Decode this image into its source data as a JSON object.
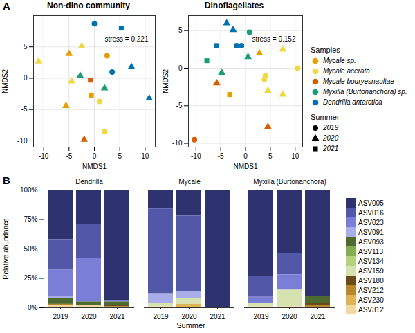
{
  "chart_data": [
    {
      "type": "scatter",
      "panel": "A",
      "title": "Non-dino community",
      "x_label": "NMDS1",
      "y_label": "NMDS2",
      "annotation": "stress = 0.221",
      "xlim": [
        -12,
        12
      ],
      "ylim": [
        -11,
        10
      ],
      "xticks": [
        -10,
        -5,
        0,
        5,
        10
      ],
      "yticks": [
        -10,
        -5,
        0,
        5
      ],
      "grid": true,
      "legend_title": "Samples",
      "marker_title": "Summer",
      "markers": [
        {
          "name": "2019",
          "marker": "circle"
        },
        {
          "name": "2020",
          "marker": "triangle"
        },
        {
          "name": "2021",
          "marker": "square"
        }
      ],
      "series": [
        {
          "name": "Mycale sp.",
          "color": "#E69F00",
          "x": [
            2.5,
            -5.0,
            -5.6,
            -0.6
          ],
          "y": [
            3.6,
            3.9,
            -4.4,
            -2.7
          ],
          "summer": [
            "2019",
            "2020",
            "2020",
            "2021"
          ]
        },
        {
          "name": "Mycale acerata",
          "color": "#F0D845",
          "x": [
            1.0,
            2.0,
            -11.0,
            -2.5,
            -4.5
          ],
          "y": [
            -3.7,
            -8.5,
            2.7,
            5.1,
            -0.5
          ],
          "summer": [
            "2019",
            "2019",
            "2020",
            "2020",
            "2020"
          ]
        },
        {
          "name": "Mycale bouryesnaultae",
          "color": "#D55E00",
          "x": [
            -2.0,
            -0.8
          ],
          "y": [
            -9.8,
            -0.3
          ],
          "summer": [
            "2020",
            "2021"
          ]
        },
        {
          "name": "Myxilla (Burtonanchora) sp.",
          "color": "#1B9E77",
          "x": [
            -2.8,
            2.0
          ],
          "y": [
            0.4,
            -1.6
          ],
          "summer": [
            "2020",
            "2020"
          ]
        },
        {
          "name": "Dendrilla antarctica",
          "color": "#0072B2",
          "x": [
            0.0,
            3.5,
            7.3,
            10.8,
            5.3
          ],
          "y": [
            8.7,
            1.0,
            1.8,
            -3.2,
            8.0
          ],
          "summer": [
            "2019",
            "2019",
            "2020",
            "2020",
            "2021"
          ]
        }
      ]
    },
    {
      "type": "scatter",
      "title": "Dinoflagellates",
      "x_label": "NMDS1",
      "y_label": "NMDS2",
      "annotation": "stress = 0.152",
      "xlim": [
        -11.5,
        11.5
      ],
      "ylim": [
        -10.5,
        7
      ],
      "xticks": [
        -10,
        -5,
        0,
        5,
        10
      ],
      "yticks": [
        -10,
        -5,
        0,
        5
      ],
      "grid": true,
      "series": [
        {
          "name": "Mycale sp.",
          "color": "#E69F00",
          "x": [
            -3.2,
            2.8
          ],
          "y": [
            -3.5,
            2.0
          ],
          "summer": [
            "2021",
            "2020"
          ]
        },
        {
          "name": "Mycale acerata",
          "color": "#F0D845",
          "x": [
            4.0,
            3.8,
            10.5,
            4.5,
            7.5,
            7.5
          ],
          "y": [
            -1.0,
            -1.5,
            0.0,
            -3.0,
            2.5,
            -3.5
          ],
          "summer": [
            "2019",
            "2019",
            "2019",
            "2020",
            "2020",
            "2020"
          ]
        },
        {
          "name": "Mycale bouryesnaultae",
          "color": "#D55E00",
          "x": [
            -10.3,
            -5.8,
            4.5
          ],
          "y": [
            -9.5,
            -2.0,
            -7.8
          ],
          "summer": [
            "2019",
            "2020",
            "2020"
          ]
        },
        {
          "name": "Myxilla (Burtonanchora) sp.",
          "color": "#1B9E77",
          "x": [
            0.8,
            -4.8,
            0.5,
            -7.8
          ],
          "y": [
            4.8,
            -0.6,
            1.5,
            1.0
          ],
          "summer": [
            "2019",
            "2020",
            "2020",
            "2021"
          ]
        },
        {
          "name": "Dendrilla antarctica",
          "color": "#0072B2",
          "x": [
            -1.8,
            -0.8,
            -3.8,
            -2.5,
            -5.8
          ],
          "y": [
            3.0,
            3.0,
            6.0,
            5.1,
            3.0
          ],
          "summer": [
            "2019",
            "2019",
            "2020",
            "2020",
            "2021"
          ]
        }
      ]
    },
    {
      "type": "bar",
      "panel": "B",
      "stacked": true,
      "x_label": "Summer",
      "y_label": "Relative abundance",
      "facets": [
        "Dendrilla",
        "Mycale",
        "Myxilla (Burtonanchora)"
      ],
      "categories": [
        "2019",
        "2020",
        "2021"
      ],
      "ylim": [
        0,
        100
      ],
      "yticks": [
        {
          "value": 0,
          "label": "0%"
        },
        {
          "value": 25,
          "label": "25%"
        },
        {
          "value": 50,
          "label": "50%"
        },
        {
          "value": 75,
          "label": "75%"
        },
        {
          "value": 100,
          "label": "100%"
        }
      ],
      "grid": false,
      "series": [
        {
          "name": "ASV005",
          "color": "#2E3370",
          "values": [
            [
              42,
              29,
              94
            ],
            [
              16,
              22,
              100
            ],
            [
              73,
              54,
              90
            ]
          ]
        },
        {
          "name": "ASV016",
          "color": "#5257A8",
          "values": [
            [
              26,
              29,
              0
            ],
            [
              72,
              64,
              0
            ],
            [
              18,
              18,
              0
            ]
          ]
        },
        {
          "name": "ASV023",
          "color": "#7A7ED6",
          "values": [
            [
              22,
              37,
              1
            ],
            [
              0,
              0,
              0
            ],
            [
              5,
              13,
              0
            ]
          ]
        },
        {
          "name": "ASV091",
          "color": "#A9AEE8",
          "values": [
            [
              2,
              0,
              0
            ],
            [
              8,
              6,
              0
            ],
            [
              0,
              0,
              0
            ]
          ]
        },
        {
          "name": "ASV093",
          "color": "#4D6B2E",
          "values": [
            [
              5,
              3,
              3
            ],
            [
              0,
              0,
              0
            ],
            [
              0,
              0,
              6
            ]
          ]
        },
        {
          "name": "ASV113",
          "color": "#86AD4F",
          "values": [
            [
              0,
              0,
              0
            ],
            [
              0,
              0,
              0
            ],
            [
              0,
              0,
              0
            ]
          ]
        },
        {
          "name": "ASV134",
          "color": "#B5D27F",
          "values": [
            [
              0,
              0,
              0
            ],
            [
              0,
              0,
              0
            ],
            [
              0,
              0,
              0
            ]
          ]
        },
        {
          "name": "ASV159",
          "color": "#D6E2B0",
          "values": [
            [
              0,
              0,
              0
            ],
            [
              3,
              5,
              0
            ],
            [
              3,
              14,
              0
            ]
          ]
        },
        {
          "name": "ASV180",
          "color": "#6B4A1A",
          "values": [
            [
              0,
              0,
              1
            ],
            [
              0,
              0,
              0
            ],
            [
              0,
              0,
              2
            ]
          ]
        },
        {
          "name": "ASV212",
          "color": "#B8862B",
          "values": [
            [
              1,
              0,
              1
            ],
            [
              0,
              0,
              0
            ],
            [
              0,
              0,
              2
            ]
          ]
        },
        {
          "name": "ASV230",
          "color": "#E0B456",
          "values": [
            [
              0,
              0,
              0
            ],
            [
              0,
              3,
              0
            ],
            [
              0,
              0,
              0
            ]
          ]
        },
        {
          "name": "ASV312",
          "color": "#F1D9A0",
          "values": [
            [
              2,
              2,
              0
            ],
            [
              1,
              0,
              0
            ],
            [
              1,
              1,
              0
            ]
          ]
        }
      ]
    }
  ]
}
